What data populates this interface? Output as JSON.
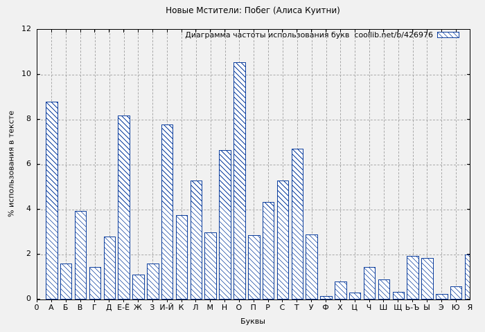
{
  "window": {
    "background": "#f1f1f1"
  },
  "chart_data": {
    "type": "bar",
    "title": "Новые Мстители: Побег (Алиса Куитни)",
    "legend_label": "Диаграмма частоты использования букв  coollib.net/b/426976",
    "legend_position": "top-right-inside",
    "xlabel": "Буквы",
    "ylabel": "% использования в тексте",
    "origin_tick_label": "0",
    "ylim": [
      0,
      12
    ],
    "yticks": [
      0,
      2,
      4,
      6,
      8,
      10,
      12
    ],
    "grid": "dashed",
    "bar_style": "diagonal-hatch",
    "colors": {
      "bar_outline": "#0d3f9e",
      "bar_fill": "#ffffff",
      "grid": "#a9a9a9",
      "axis": "#000000",
      "text": "#000000",
      "background": "#f1f1f1"
    },
    "categories": [
      "А",
      "Б",
      "В",
      "Г",
      "Д",
      "Е-Ё",
      "Ж",
      "З",
      "И-Й",
      "К",
      "Л",
      "М",
      "Н",
      "О",
      "П",
      "Р",
      "С",
      "Т",
      "У",
      "Ф",
      "Х",
      "Ц",
      "Ч",
      "Ш",
      "Щ",
      "Ь-Ъ",
      "Ы",
      "Э",
      "Ю",
      "Я"
    ],
    "values": [
      8.8,
      1.6,
      3.95,
      1.45,
      2.8,
      8.2,
      1.1,
      1.6,
      7.8,
      3.75,
      5.3,
      3.0,
      6.65,
      10.55,
      2.85,
      4.35,
      5.3,
      6.7,
      2.9,
      0.15,
      0.8,
      0.3,
      1.45,
      0.9,
      0.35,
      1.95,
      1.85,
      0.25,
      0.6,
      2.0
    ]
  }
}
